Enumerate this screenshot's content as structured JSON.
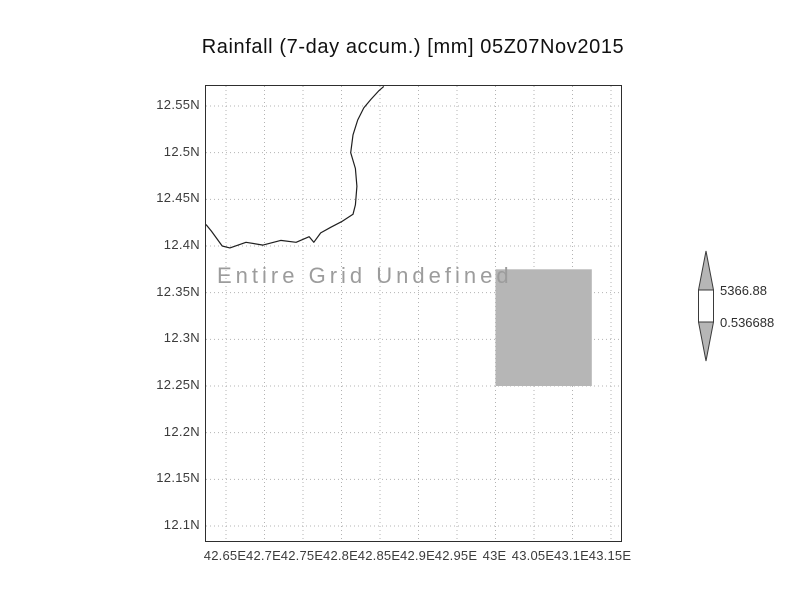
{
  "title": "Rainfall (7-day accum.) [mm] 05Z07Nov2015",
  "plot": {
    "undefined_label": "Entire Grid Undefined"
  },
  "colorbar": {
    "max_label": "5366.88",
    "min_label": "0.536688",
    "arrow_color": "#b6b6b6"
  },
  "chart_data": {
    "type": "heatmap",
    "title": "Rainfall (7-day accum.) [mm] 05Z07Nov2015",
    "xlabel": "",
    "ylabel": "",
    "x_tick_labels": [
      "42.65E",
      "42.7E",
      "42.75E",
      "42.8E",
      "42.85E",
      "42.9E",
      "42.95E",
      "43E",
      "43.05E",
      "43.1E",
      "43.15E"
    ],
    "y_tick_labels": [
      "12.55N",
      "12.5N",
      "12.45N",
      "12.4N",
      "12.35N",
      "12.3N",
      "12.25N",
      "12.2N",
      "12.15N",
      "12.1N"
    ],
    "xlim": [
      42.624,
      43.163
    ],
    "ylim": [
      12.084,
      12.571
    ],
    "grid": true,
    "annotations": [
      "Entire Grid Undefined"
    ],
    "colorbar": {
      "max": 5366.88,
      "min": 0.536688
    },
    "undefined_region": {
      "lon": [
        43.0,
        43.125
      ],
      "lat": [
        12.25,
        12.375
      ],
      "color": "#b6b6b6"
    },
    "coastline": [
      [
        42.624,
        12.423
      ],
      [
        42.631,
        12.416
      ],
      [
        42.645,
        12.4
      ],
      [
        42.655,
        12.398
      ],
      [
        42.676,
        12.404
      ],
      [
        42.698,
        12.401
      ],
      [
        42.721,
        12.406
      ],
      [
        42.741,
        12.404
      ],
      [
        42.758,
        12.41
      ],
      [
        42.764,
        12.404
      ],
      [
        42.773,
        12.414
      ],
      [
        42.786,
        12.42
      ],
      [
        42.8,
        12.426
      ],
      [
        42.815,
        12.434
      ],
      [
        42.818,
        12.444
      ],
      [
        42.82,
        12.464
      ],
      [
        42.818,
        12.483
      ],
      [
        42.812,
        12.5
      ],
      [
        42.815,
        12.519
      ],
      [
        42.821,
        12.535
      ],
      [
        42.829,
        12.548
      ],
      [
        42.838,
        12.557
      ],
      [
        42.848,
        12.566
      ],
      [
        42.855,
        12.571
      ]
    ]
  }
}
